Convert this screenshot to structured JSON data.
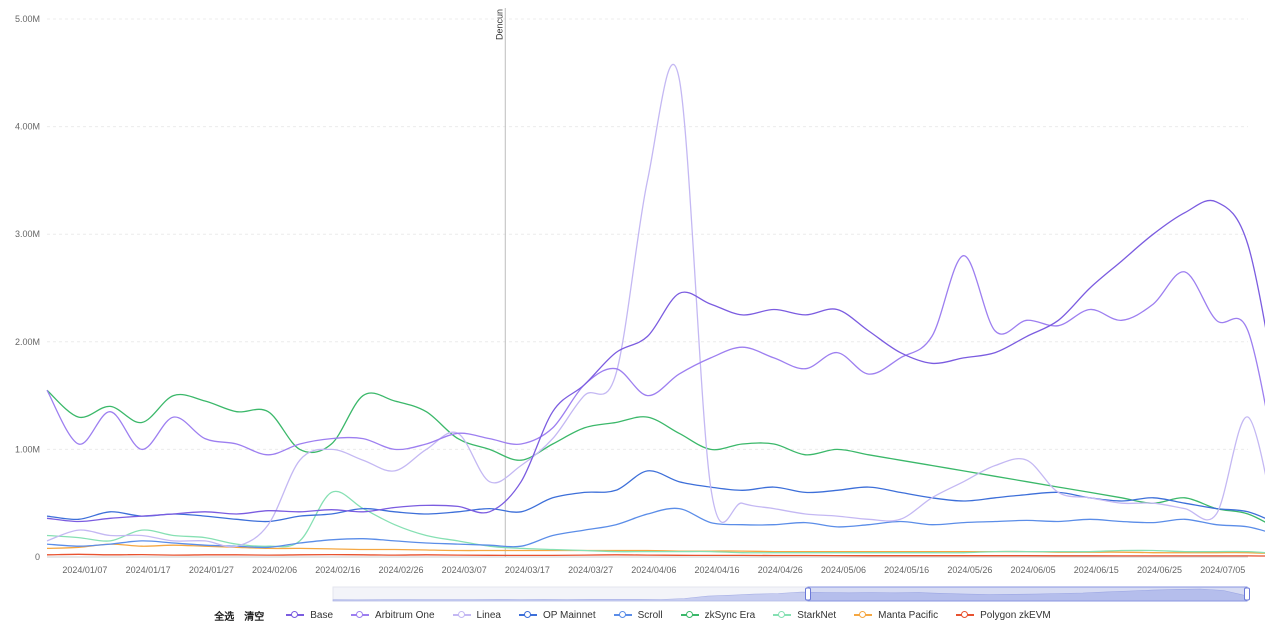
{
  "chart_data": {
    "type": "line",
    "title": "",
    "xlabel": "",
    "ylabel": "",
    "ylim": [
      0,
      5000000
    ],
    "y_ticks": [
      "0",
      "1.00M",
      "2.00M",
      "3.00M",
      "4.00M",
      "5.00M"
    ],
    "y_tick_values": [
      0,
      1000000,
      2000000,
      3000000,
      4000000,
      5000000
    ],
    "x_start": "2024-01-01",
    "x_days": 190,
    "x_ticks": [
      "2024/01/07",
      "2024/01/17",
      "2024/01/27",
      "2024/02/06",
      "2024/02/16",
      "2024/02/26",
      "2024/03/07",
      "2024/03/17",
      "2024/03/27",
      "2024/04/06",
      "2024/04/16",
      "2024/04/26",
      "2024/05/06",
      "2024/05/16",
      "2024/05/26",
      "2024/06/05",
      "2024/06/15",
      "2024/06/25",
      "2024/07/05"
    ],
    "x_tick_days": [
      6,
      16,
      26,
      36,
      46,
      56,
      66,
      76,
      86,
      96,
      106,
      116,
      126,
      136,
      146,
      156,
      166,
      176,
      186
    ],
    "annotation": {
      "label": "Dencun",
      "day": 72.5
    },
    "grid": true,
    "legend_placement": "bottom-center",
    "legend_controls": [
      "全选",
      "清空"
    ],
    "series": [
      {
        "name": "Base",
        "color": "#7b5ce0",
        "day_step": 5,
        "values": [
          360000,
          330000,
          360000,
          380000,
          400000,
          420000,
          400000,
          430000,
          420000,
          440000,
          420000,
          460000,
          480000,
          470000,
          420000,
          700000,
          1350000,
          1600000,
          1900000,
          2050000,
          2450000,
          2350000,
          2250000,
          2300000,
          2250000,
          2300000,
          2100000,
          1900000,
          1800000,
          1850000,
          1900000,
          2050000,
          2200000,
          2500000,
          2750000,
          3000000,
          3200000,
          3300000,
          2900000,
          1400000
        ]
      },
      {
        "name": "Arbitrum One",
        "color": "#9d7ff0",
        "day_step": 5,
        "values": [
          1550000,
          1050000,
          1350000,
          1000000,
          1300000,
          1100000,
          1050000,
          950000,
          1050000,
          1100000,
          1100000,
          1000000,
          1050000,
          1150000,
          1100000,
          1050000,
          1200000,
          1600000,
          1750000,
          1500000,
          1700000,
          1850000,
          1950000,
          1850000,
          1750000,
          1900000,
          1700000,
          1850000,
          2050000,
          2800000,
          2100000,
          2200000,
          2150000,
          2300000,
          2200000,
          2350000,
          2650000,
          2200000,
          2100000,
          700000
        ]
      },
      {
        "name": "Linea",
        "color": "#c4b8f3",
        "day_step": 5,
        "values": [
          150000,
          250000,
          200000,
          200000,
          150000,
          150000,
          100000,
          300000,
          900000,
          1000000,
          900000,
          800000,
          1000000,
          1150000,
          700000,
          850000,
          1100000,
          1500000,
          1700000,
          3500000,
          4450000,
          650000,
          500000,
          450000,
          400000,
          380000,
          350000,
          350000,
          550000,
          700000,
          850000,
          900000,
          600000,
          550000,
          500000,
          500000,
          450000,
          400000,
          1300000,
          100000
        ]
      },
      {
        "name": "OP Mainnet",
        "color": "#3d6fd9",
        "day_step": 5,
        "values": [
          380000,
          350000,
          420000,
          380000,
          400000,
          380000,
          350000,
          330000,
          380000,
          400000,
          450000,
          420000,
          400000,
          420000,
          450000,
          420000,
          550000,
          600000,
          620000,
          800000,
          700000,
          650000,
          620000,
          650000,
          600000,
          620000,
          650000,
          600000,
          550000,
          520000,
          550000,
          580000,
          600000,
          550000,
          520000,
          550000,
          500000,
          450000,
          420000,
          300000
        ]
      },
      {
        "name": "Scroll",
        "color": "#5b8de8",
        "day_step": 5,
        "values": [
          120000,
          100000,
          120000,
          150000,
          130000,
          110000,
          100000,
          90000,
          130000,
          160000,
          170000,
          150000,
          130000,
          120000,
          110000,
          100000,
          200000,
          250000,
          300000,
          400000,
          450000,
          320000,
          300000,
          300000,
          320000,
          280000,
          300000,
          330000,
          300000,
          320000,
          330000,
          340000,
          330000,
          350000,
          330000,
          320000,
          350000,
          300000,
          280000,
          200000
        ]
      },
      {
        "name": "zkSync Era",
        "color": "#3bb86a",
        "day_step": 5,
        "values": [
          1550000,
          1300000,
          1400000,
          1250000,
          1500000,
          1450000,
          1350000,
          1350000,
          1000000,
          1050000,
          1500000,
          1450000,
          1350000,
          1100000,
          1000000,
          900000,
          1050000,
          1200000,
          1250000,
          1300000,
          1150000,
          1000000,
          1050000,
          1050000,
          950000,
          1000000,
          950000,
          900000,
          850000,
          800000,
          750000,
          700000,
          650000,
          600000,
          550000,
          500000,
          550000,
          450000,
          400000,
          250000
        ]
      },
      {
        "name": "StarkNet",
        "color": "#86e0b3",
        "day_step": 5,
        "values": [
          200000,
          180000,
          150000,
          250000,
          200000,
          180000,
          120000,
          100000,
          150000,
          600000,
          450000,
          300000,
          200000,
          150000,
          100000,
          80000,
          70000,
          60000,
          50000,
          50000,
          50000,
          50000,
          40000,
          40000,
          40000,
          40000,
          40000,
          40000,
          40000,
          40000,
          50000,
          50000,
          50000,
          50000,
          60000,
          60000,
          50000,
          50000,
          50000,
          30000
        ]
      },
      {
        "name": "Manta Pacific",
        "color": "#f5a742",
        "day_step": 5,
        "values": [
          80000,
          90000,
          120000,
          100000,
          110000,
          100000,
          90000,
          80000,
          80000,
          75000,
          70000,
          70000,
          65000,
          60000,
          60000,
          60000,
          60000,
          60000,
          60000,
          60000,
          55000,
          55000,
          55000,
          50000,
          50000,
          50000,
          50000,
          50000,
          50000,
          50000,
          50000,
          50000,
          45000,
          45000,
          45000,
          40000,
          40000,
          40000,
          40000,
          30000
        ]
      },
      {
        "name": "Polygon zkEVM",
        "color": "#e8522f",
        "day_step": 5,
        "values": [
          20000,
          25000,
          20000,
          22000,
          18000,
          20000,
          20000,
          18000,
          20000,
          22000,
          20000,
          18000,
          20000,
          18000,
          16000,
          15000,
          15000,
          18000,
          20000,
          18000,
          16000,
          15000,
          15000,
          14000,
          14000,
          13000,
          12000,
          12000,
          12000,
          12000,
          12000,
          12000,
          11000,
          11000,
          10000,
          10000,
          10000,
          10000,
          10000,
          8000
        ]
      }
    ]
  }
}
